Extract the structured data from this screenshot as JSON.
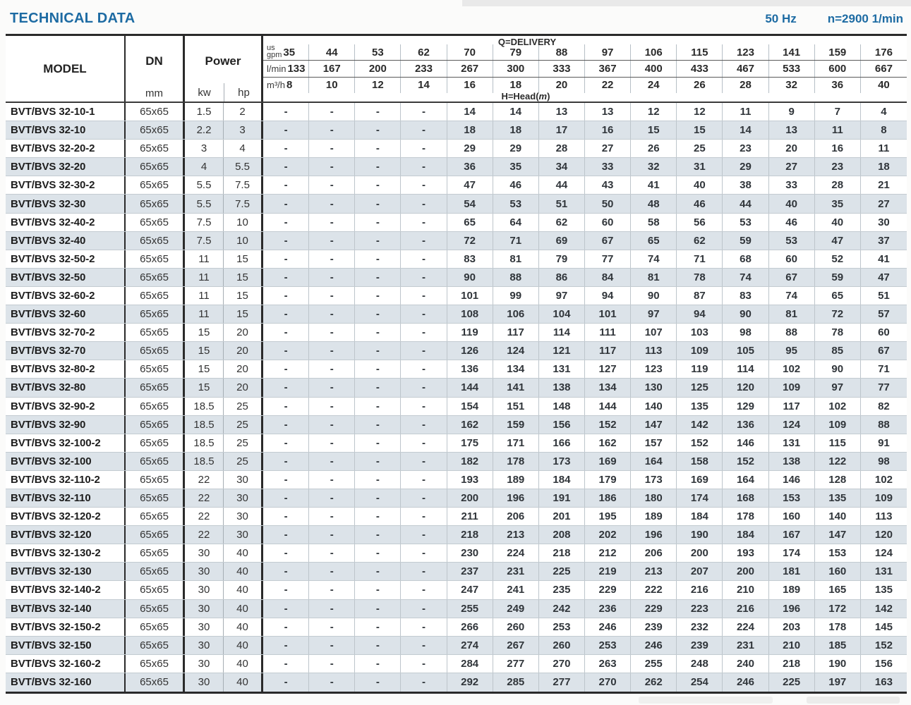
{
  "page": {
    "title": "TECHNICAL DATA",
    "frequency": "50 Hz",
    "speed": "n=2900 1/min"
  },
  "table": {
    "model_header": "MODEL",
    "dn_header": "DN",
    "dn_unit": "mm",
    "power_header": "Power",
    "power_kw": "kw",
    "power_hp": "hp",
    "delivery_label": "Q=DELIVERY",
    "head_label_prefix": "H=Head(",
    "head_label_var": "m",
    "head_label_suffix": ")",
    "units": {
      "us": "us",
      "gpm": "gpm",
      "lmin": "l/min",
      "m3h": "m³/h"
    },
    "delivery_columns": {
      "us_gpm": [
        "35",
        "44",
        "53",
        "62",
        "70",
        "79",
        "88",
        "97",
        "106",
        "115",
        "123",
        "141",
        "159",
        "176"
      ],
      "l_min": [
        "133",
        "167",
        "200",
        "233",
        "267",
        "300",
        "333",
        "367",
        "400",
        "433",
        "467",
        "533",
        "600",
        "667"
      ],
      "m3_h": [
        "8",
        "10",
        "12",
        "14",
        "16",
        "18",
        "20",
        "22",
        "24",
        "26",
        "28",
        "32",
        "36",
        "40"
      ]
    },
    "rows": [
      {
        "model": "BVT/BVS 32-10-1",
        "dn": "65x65",
        "kw": "1.5",
        "hp": "2",
        "head": [
          "-",
          "-",
          "-",
          "-",
          "14",
          "14",
          "13",
          "13",
          "12",
          "12",
          "11",
          "9",
          "7",
          "4"
        ]
      },
      {
        "model": "BVT/BVS 32-10",
        "dn": "65x65",
        "kw": "2.2",
        "hp": "3",
        "head": [
          "-",
          "-",
          "-",
          "-",
          "18",
          "18",
          "17",
          "16",
          "15",
          "15",
          "14",
          "13",
          "11",
          "8"
        ]
      },
      {
        "model": "BVT/BVS 32-20-2",
        "dn": "65x65",
        "kw": "3",
        "hp": "4",
        "head": [
          "-",
          "-",
          "-",
          "-",
          "29",
          "29",
          "28",
          "27",
          "26",
          "25",
          "23",
          "20",
          "16",
          "11"
        ]
      },
      {
        "model": "BVT/BVS 32-20",
        "dn": "65x65",
        "kw": "4",
        "hp": "5.5",
        "head": [
          "-",
          "-",
          "-",
          "-",
          "36",
          "35",
          "34",
          "33",
          "32",
          "31",
          "29",
          "27",
          "23",
          "18"
        ]
      },
      {
        "model": "BVT/BVS 32-30-2",
        "dn": "65x65",
        "kw": "5.5",
        "hp": "7.5",
        "head": [
          "-",
          "-",
          "-",
          "-",
          "47",
          "46",
          "44",
          "43",
          "41",
          "40",
          "38",
          "33",
          "28",
          "21"
        ]
      },
      {
        "model": "BVT/BVS 32-30",
        "dn": "65x65",
        "kw": "5.5",
        "hp": "7.5",
        "head": [
          "-",
          "-",
          "-",
          "-",
          "54",
          "53",
          "51",
          "50",
          "48",
          "46",
          "44",
          "40",
          "35",
          "27"
        ]
      },
      {
        "model": "BVT/BVS 32-40-2",
        "dn": "65x65",
        "kw": "7.5",
        "hp": "10",
        "head": [
          "-",
          "-",
          "-",
          "-",
          "65",
          "64",
          "62",
          "60",
          "58",
          "56",
          "53",
          "46",
          "40",
          "30"
        ]
      },
      {
        "model": "BVT/BVS 32-40",
        "dn": "65x65",
        "kw": "7.5",
        "hp": "10",
        "head": [
          "-",
          "-",
          "-",
          "-",
          "72",
          "71",
          "69",
          "67",
          "65",
          "62",
          "59",
          "53",
          "47",
          "37"
        ]
      },
      {
        "model": "BVT/BVS 32-50-2",
        "dn": "65x65",
        "kw": "11",
        "hp": "15",
        "head": [
          "-",
          "-",
          "-",
          "-",
          "83",
          "81",
          "79",
          "77",
          "74",
          "71",
          "68",
          "60",
          "52",
          "41"
        ]
      },
      {
        "model": "BVT/BVS 32-50",
        "dn": "65x65",
        "kw": "11",
        "hp": "15",
        "head": [
          "-",
          "-",
          "-",
          "-",
          "90",
          "88",
          "86",
          "84",
          "81",
          "78",
          "74",
          "67",
          "59",
          "47"
        ]
      },
      {
        "model": "BVT/BVS 32-60-2",
        "dn": "65x65",
        "kw": "11",
        "hp": "15",
        "head": [
          "-",
          "-",
          "-",
          "-",
          "101",
          "99",
          "97",
          "94",
          "90",
          "87",
          "83",
          "74",
          "65",
          "51"
        ]
      },
      {
        "model": "BVT/BVS 32-60",
        "dn": "65x65",
        "kw": "11",
        "hp": "15",
        "head": [
          "-",
          "-",
          "-",
          "-",
          "108",
          "106",
          "104",
          "101",
          "97",
          "94",
          "90",
          "81",
          "72",
          "57"
        ]
      },
      {
        "model": "BVT/BVS 32-70-2",
        "dn": "65x65",
        "kw": "15",
        "hp": "20",
        "head": [
          "-",
          "-",
          "-",
          "-",
          "119",
          "117",
          "114",
          "111",
          "107",
          "103",
          "98",
          "88",
          "78",
          "60"
        ]
      },
      {
        "model": "BVT/BVS 32-70",
        "dn": "65x65",
        "kw": "15",
        "hp": "20",
        "head": [
          "-",
          "-",
          "-",
          "-",
          "126",
          "124",
          "121",
          "117",
          "113",
          "109",
          "105",
          "95",
          "85",
          "67"
        ]
      },
      {
        "model": "BVT/BVS 32-80-2",
        "dn": "65x65",
        "kw": "15",
        "hp": "20",
        "head": [
          "-",
          "-",
          "-",
          "-",
          "136",
          "134",
          "131",
          "127",
          "123",
          "119",
          "114",
          "102",
          "90",
          "71"
        ]
      },
      {
        "model": "BVT/BVS 32-80",
        "dn": "65x65",
        "kw": "15",
        "hp": "20",
        "head": [
          "-",
          "-",
          "-",
          "-",
          "144",
          "141",
          "138",
          "134",
          "130",
          "125",
          "120",
          "109",
          "97",
          "77"
        ]
      },
      {
        "model": "BVT/BVS 32-90-2",
        "dn": "65x65",
        "kw": "18.5",
        "hp": "25",
        "head": [
          "-",
          "-",
          "-",
          "-",
          "154",
          "151",
          "148",
          "144",
          "140",
          "135",
          "129",
          "117",
          "102",
          "82"
        ]
      },
      {
        "model": "BVT/BVS 32-90",
        "dn": "65x65",
        "kw": "18.5",
        "hp": "25",
        "head": [
          "-",
          "-",
          "-",
          "-",
          "162",
          "159",
          "156",
          "152",
          "147",
          "142",
          "136",
          "124",
          "109",
          "88"
        ]
      },
      {
        "model": "BVT/BVS 32-100-2",
        "dn": "65x65",
        "kw": "18.5",
        "hp": "25",
        "head": [
          "-",
          "-",
          "-",
          "-",
          "175",
          "171",
          "166",
          "162",
          "157",
          "152",
          "146",
          "131",
          "115",
          "91"
        ]
      },
      {
        "model": "BVT/BVS 32-100",
        "dn": "65x65",
        "kw": "18.5",
        "hp": "25",
        "head": [
          "-",
          "-",
          "-",
          "-",
          "182",
          "178",
          "173",
          "169",
          "164",
          "158",
          "152",
          "138",
          "122",
          "98"
        ]
      },
      {
        "model": "BVT/BVS 32-110-2",
        "dn": "65x65",
        "kw": "22",
        "hp": "30",
        "head": [
          "-",
          "-",
          "-",
          "-",
          "193",
          "189",
          "184",
          "179",
          "173",
          "169",
          "164",
          "146",
          "128",
          "102"
        ]
      },
      {
        "model": "BVT/BVS 32-110",
        "dn": "65x65",
        "kw": "22",
        "hp": "30",
        "head": [
          "-",
          "-",
          "-",
          "-",
          "200",
          "196",
          "191",
          "186",
          "180",
          "174",
          "168",
          "153",
          "135",
          "109"
        ]
      },
      {
        "model": "BVT/BVS 32-120-2",
        "dn": "65x65",
        "kw": "22",
        "hp": "30",
        "head": [
          "-",
          "-",
          "-",
          "-",
          "211",
          "206",
          "201",
          "195",
          "189",
          "184",
          "178",
          "160",
          "140",
          "113"
        ]
      },
      {
        "model": "BVT/BVS 32-120",
        "dn": "65x65",
        "kw": "22",
        "hp": "30",
        "head": [
          "-",
          "-",
          "-",
          "-",
          "218",
          "213",
          "208",
          "202",
          "196",
          "190",
          "184",
          "167",
          "147",
          "120"
        ]
      },
      {
        "model": "BVT/BVS 32-130-2",
        "dn": "65x65",
        "kw": "30",
        "hp": "40",
        "head": [
          "-",
          "-",
          "-",
          "-",
          "230",
          "224",
          "218",
          "212",
          "206",
          "200",
          "193",
          "174",
          "153",
          "124"
        ]
      },
      {
        "model": "BVT/BVS 32-130",
        "dn": "65x65",
        "kw": "30",
        "hp": "40",
        "head": [
          "-",
          "-",
          "-",
          "-",
          "237",
          "231",
          "225",
          "219",
          "213",
          "207",
          "200",
          "181",
          "160",
          "131"
        ]
      },
      {
        "model": "BVT/BVS 32-140-2",
        "dn": "65x65",
        "kw": "30",
        "hp": "40",
        "head": [
          "-",
          "-",
          "-",
          "-",
          "247",
          "241",
          "235",
          "229",
          "222",
          "216",
          "210",
          "189",
          "165",
          "135"
        ]
      },
      {
        "model": "BVT/BVS 32-140",
        "dn": "65x65",
        "kw": "30",
        "hp": "40",
        "head": [
          "-",
          "-",
          "-",
          "-",
          "255",
          "249",
          "242",
          "236",
          "229",
          "223",
          "216",
          "196",
          "172",
          "142"
        ]
      },
      {
        "model": "BVT/BVS 32-150-2",
        "dn": "65x65",
        "kw": "30",
        "hp": "40",
        "head": [
          "-",
          "-",
          "-",
          "-",
          "266",
          "260",
          "253",
          "246",
          "239",
          "232",
          "224",
          "203",
          "178",
          "145"
        ]
      },
      {
        "model": "BVT/BVS 32-150",
        "dn": "65x65",
        "kw": "30",
        "hp": "40",
        "head": [
          "-",
          "-",
          "-",
          "-",
          "274",
          "267",
          "260",
          "253",
          "246",
          "239",
          "231",
          "210",
          "185",
          "152"
        ]
      },
      {
        "model": "BVT/BVS 32-160-2",
        "dn": "65x65",
        "kw": "30",
        "hp": "40",
        "head": [
          "-",
          "-",
          "-",
          "-",
          "284",
          "277",
          "270",
          "263",
          "255",
          "248",
          "240",
          "218",
          "190",
          "156"
        ]
      },
      {
        "model": "BVT/BVS 32-160",
        "dn": "65x65",
        "kw": "30",
        "hp": "40",
        "head": [
          "-",
          "-",
          "-",
          "-",
          "292",
          "285",
          "277",
          "270",
          "262",
          "254",
          "246",
          "225",
          "197",
          "163"
        ]
      }
    ]
  }
}
